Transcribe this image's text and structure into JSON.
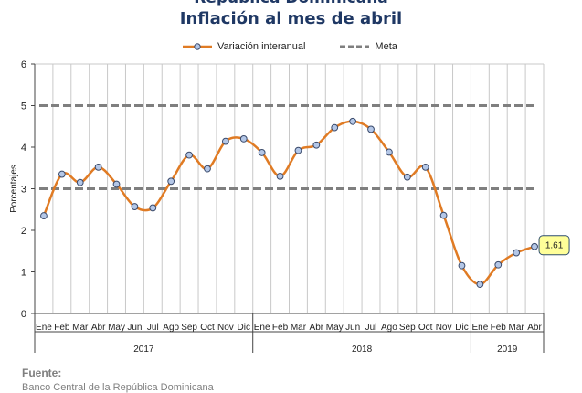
{
  "header": {
    "title_line1": "República Dominicana",
    "title_line2": "Inflación al mes de abril"
  },
  "legend": {
    "series_label": "Variación interanual",
    "target_label": "Meta"
  },
  "footer": {
    "source_label": "Fuente:",
    "source_text": "Banco Central de la República Dominicana"
  },
  "colors": {
    "series": "#e07b24",
    "marker_fill": "#b4c7e7",
    "marker_stroke": "#3a4a6b",
    "target": "#7f7f7f",
    "title": "#1f3864",
    "callout_fill": "#ffff99"
  },
  "chart_data": {
    "type": "line",
    "ylabel": "Porcentajes",
    "xlabel": "",
    "ylim": [
      0,
      6
    ],
    "yticks": [
      "0",
      "1",
      "2",
      "3",
      "4",
      "5",
      "6"
    ],
    "grid": "vertical",
    "legend_position": "top",
    "categories": [
      "Ene",
      "Feb",
      "Mar",
      "Abr",
      "May",
      "Jun",
      "Jul",
      "Ago",
      "Sep",
      "Oct",
      "Nov",
      "Dic",
      "Ene",
      "Feb",
      "Mar",
      "Abr",
      "May",
      "Jun",
      "Jul",
      "Ago",
      "Sep",
      "Oct",
      "Nov",
      "Dic",
      "Ene",
      "Feb",
      "Mar",
      "Abr"
    ],
    "years": [
      {
        "label": "2017",
        "start": 0,
        "end": 11
      },
      {
        "label": "2018",
        "start": 12,
        "end": 23
      },
      {
        "label": "2019",
        "start": 24,
        "end": 27
      }
    ],
    "series": [
      {
        "name": "Variación interanual",
        "values": [
          2.35,
          3.35,
          3.15,
          3.52,
          3.11,
          2.57,
          2.54,
          3.18,
          3.81,
          3.48,
          4.14,
          4.2,
          3.87,
          3.3,
          3.92,
          4.05,
          4.47,
          4.62,
          4.43,
          3.88,
          3.28,
          3.52,
          2.36,
          1.15,
          0.7,
          1.17,
          1.46,
          1.61
        ]
      }
    ],
    "reference_lines": [
      {
        "name": "Meta",
        "value": 5
      },
      {
        "name": "Meta",
        "value": 3
      }
    ],
    "callout": {
      "label": "1.61",
      "index": 27
    }
  }
}
